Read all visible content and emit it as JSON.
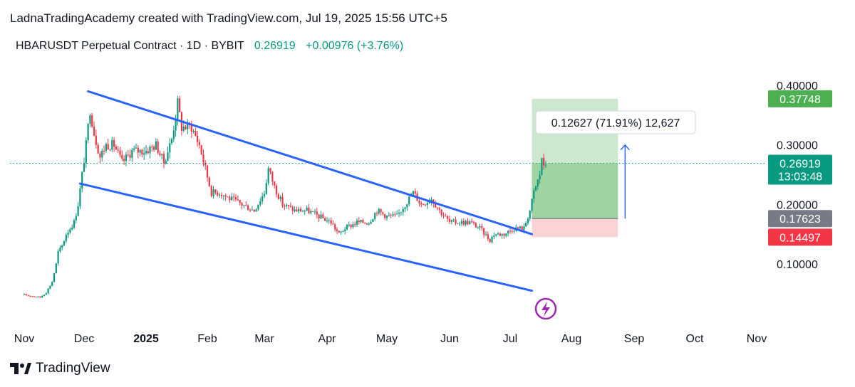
{
  "header": {
    "credit": "LadnaTradingAcademy created with TradingView.com, Jul 19, 2025 15:56 UTC+5",
    "symbol_title": "HBARUSDT Perpetual Contract · 1D · BYBIT",
    "last_price": "0.26919",
    "change": "+0.00976 (+3.76%)"
  },
  "footer": {
    "brand": "TradingView"
  },
  "colors": {
    "up": "#089981",
    "down": "#f23645",
    "channel": "#2962ff",
    "profit_zone": "#a5d6a7",
    "loss_zone": "#f8c8cc",
    "price_badge": "#089981",
    "tp_badge": "#4caf50",
    "entry_badge": "#787b86",
    "sl_badge": "#f23645",
    "icon_purple": "#9c27b0"
  },
  "chart_data": {
    "type": "candlestick",
    "y_axis": {
      "ticks": [
        0.4,
        0.3,
        0.2,
        0.1
      ],
      "tick_labels": [
        "0.40000",
        "0.30000",
        "0.20000",
        "0.10000"
      ],
      "range": [
        0.02,
        0.43
      ]
    },
    "x_axis": {
      "range": [
        "2024-11-01",
        "2025-11-30"
      ],
      "ticks": [
        {
          "date": "2024-11-01",
          "label": "Nov"
        },
        {
          "date": "2024-12-01",
          "label": "Dec"
        },
        {
          "date": "2025-01-01",
          "label": "2025",
          "bold": true
        },
        {
          "date": "2025-02-01",
          "label": "Feb"
        },
        {
          "date": "2025-03-01",
          "label": "Mar"
        },
        {
          "date": "2025-04-01",
          "label": "Apr"
        },
        {
          "date": "2025-05-01",
          "label": "May"
        },
        {
          "date": "2025-06-01",
          "label": "Jun"
        },
        {
          "date": "2025-07-01",
          "label": "Jul"
        },
        {
          "date": "2025-08-01",
          "label": "Aug"
        },
        {
          "date": "2025-09-01",
          "label": "Sep"
        },
        {
          "date": "2025-10-01",
          "label": "Oct"
        },
        {
          "date": "2025-11-01",
          "label": "Nov"
        }
      ]
    },
    "close_path": [
      [
        "2024-11-01",
        0.048
      ],
      [
        "2024-11-05",
        0.046
      ],
      [
        "2024-11-09",
        0.044
      ],
      [
        "2024-11-12",
        0.052
      ],
      [
        "2024-11-15",
        0.07
      ],
      [
        "2024-11-17",
        0.1
      ],
      [
        "2024-11-18",
        0.12
      ],
      [
        "2024-11-20",
        0.13
      ],
      [
        "2024-11-22",
        0.15
      ],
      [
        "2024-11-24",
        0.16
      ],
      [
        "2024-11-26",
        0.17
      ],
      [
        "2024-11-28",
        0.2
      ],
      [
        "2024-11-30",
        0.25
      ],
      [
        "2024-12-02",
        0.3
      ],
      [
        "2024-12-04",
        0.36
      ],
      [
        "2024-12-06",
        0.32
      ],
      [
        "2024-12-09",
        0.28
      ],
      [
        "2024-12-12",
        0.3
      ],
      [
        "2024-12-16",
        0.3
      ],
      [
        "2024-12-20",
        0.27
      ],
      [
        "2024-12-25",
        0.29
      ],
      [
        "2025-01-01",
        0.29
      ],
      [
        "2025-01-06",
        0.3
      ],
      [
        "2025-01-10",
        0.27
      ],
      [
        "2025-01-14",
        0.31
      ],
      [
        "2025-01-17",
        0.37
      ],
      [
        "2025-01-19",
        0.33
      ],
      [
        "2025-01-24",
        0.33
      ],
      [
        "2025-01-28",
        0.3
      ],
      [
        "2025-02-03",
        0.22
      ],
      [
        "2025-02-07",
        0.22
      ],
      [
        "2025-02-12",
        0.21
      ],
      [
        "2025-02-18",
        0.2
      ],
      [
        "2025-02-24",
        0.19
      ],
      [
        "2025-03-01",
        0.22
      ],
      [
        "2025-03-03",
        0.26
      ],
      [
        "2025-03-06",
        0.23
      ],
      [
        "2025-03-10",
        0.2
      ],
      [
        "2025-03-16",
        0.19
      ],
      [
        "2025-03-22",
        0.19
      ],
      [
        "2025-03-28",
        0.18
      ],
      [
        "2025-04-03",
        0.17
      ],
      [
        "2025-04-07",
        0.15
      ],
      [
        "2025-04-10",
        0.16
      ],
      [
        "2025-04-16",
        0.17
      ],
      [
        "2025-04-22",
        0.17
      ],
      [
        "2025-04-26",
        0.19
      ],
      [
        "2025-05-01",
        0.18
      ],
      [
        "2025-05-06",
        0.18
      ],
      [
        "2025-05-10",
        0.2
      ],
      [
        "2025-05-14",
        0.22
      ],
      [
        "2025-05-18",
        0.2
      ],
      [
        "2025-05-23",
        0.21
      ],
      [
        "2025-05-27",
        0.19
      ],
      [
        "2025-06-01",
        0.17
      ],
      [
        "2025-06-06",
        0.17
      ],
      [
        "2025-06-11",
        0.17
      ],
      [
        "2025-06-16",
        0.16
      ],
      [
        "2025-06-21",
        0.14
      ],
      [
        "2025-06-23",
        0.15
      ],
      [
        "2025-06-28",
        0.15
      ],
      [
        "2025-07-03",
        0.16
      ],
      [
        "2025-07-08",
        0.16
      ],
      [
        "2025-07-11",
        0.19
      ],
      [
        "2025-07-13",
        0.22
      ],
      [
        "2025-07-16",
        0.25
      ],
      [
        "2025-07-17",
        0.28
      ],
      [
        "2025-07-18",
        0.26
      ],
      [
        "2025-07-19",
        0.26919
      ]
    ],
    "channel_lines": [
      {
        "name": "upper",
        "from": [
          "2024-12-03",
          0.39
        ],
        "to": [
          "2025-07-12",
          0.15
        ]
      },
      {
        "name": "lower",
        "from": [
          "2024-11-29",
          0.235
        ],
        "to": [
          "2025-07-12",
          0.055
        ]
      }
    ],
    "position": {
      "start": "2025-07-12",
      "end": "2025-08-24",
      "take_profit": 0.37748,
      "entry": 0.17623,
      "stop_loss": 0.14497,
      "current": 0.26919,
      "measure_label": "0.12627 (71.91%) 12,627",
      "arrow_from": 0.17623,
      "arrow_to": 0.3
    },
    "price_badges": [
      {
        "value": 0.37748,
        "label": "0.37748",
        "kind": "tp"
      },
      {
        "value": 0.26919,
        "label": "0.26919",
        "sub": "13:03:48",
        "kind": "price"
      },
      {
        "value": 0.17623,
        "label": "0.17623",
        "kind": "entry"
      },
      {
        "value": 0.14497,
        "label": "0.14497",
        "kind": "sl"
      }
    ]
  }
}
